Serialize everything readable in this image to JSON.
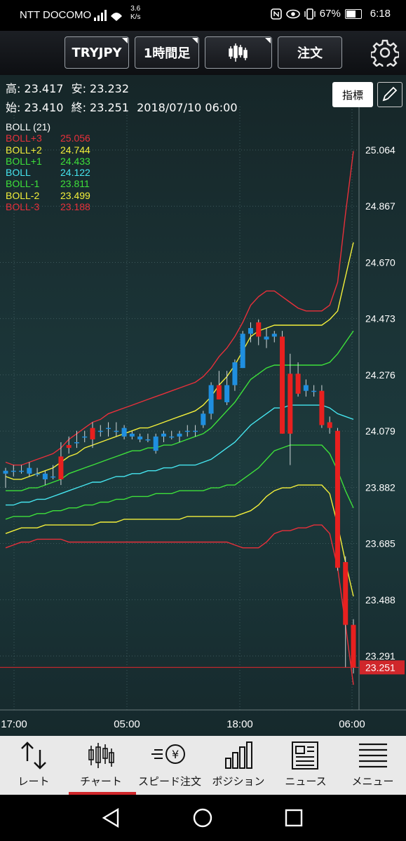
{
  "status_bar": {
    "carrier": "NTT DOCOMO",
    "speed_value": "3.6",
    "speed_unit": "K/s",
    "battery": "67%",
    "time": "6:18"
  },
  "toolbar": {
    "symbol": "TRYJPY",
    "timeframe": "1時間足",
    "chart_type_icon": "candlestick-icon",
    "order": "注文",
    "settings_icon": "gear-icon"
  },
  "ohlc": {
    "high": "高: 23.417",
    "low": "安: 23.232",
    "open": "始: 23.410",
    "close": "終: 23.251",
    "datetime": "2018/07/10 06:00"
  },
  "indicator_button": "指標",
  "legend": {
    "title": "BOLL (21)",
    "rows": [
      {
        "name": "BOLL+3",
        "value": "25.056",
        "color": "#e8303a"
      },
      {
        "name": "BOLL+2",
        "value": "24.744",
        "color": "#f4f03a"
      },
      {
        "name": "BOLL+1",
        "value": "24.433",
        "color": "#3ee03a"
      },
      {
        "name": "BOLL",
        "value": "24.122",
        "color": "#46e6f0"
      },
      {
        "name": "BOLL-1",
        "value": "23.811",
        "color": "#3ee03a"
      },
      {
        "name": "BOLL-2",
        "value": "23.499",
        "color": "#f4f03a"
      },
      {
        "name": "BOLL-3",
        "value": "23.188",
        "color": "#e8303a"
      }
    ]
  },
  "chart_data": {
    "type": "candlestick",
    "y_ticks": [
      "25.064",
      "24.867",
      "24.670",
      "24.473",
      "24.276",
      "24.079",
      "23.882",
      "23.685",
      "23.488",
      "23.291"
    ],
    "x_ticks": [
      "17:00",
      "05:00",
      "18:00",
      "06:00"
    ],
    "current_price": "23.251",
    "ylim": [
      23.18,
      25.14
    ],
    "candles": [
      {
        "o": 23.93,
        "h": 23.95,
        "l": 23.88,
        "c": 23.94
      },
      {
        "o": 23.94,
        "h": 23.96,
        "l": 23.92,
        "c": 23.94
      },
      {
        "o": 23.94,
        "h": 23.96,
        "l": 23.93,
        "c": 23.94
      },
      {
        "o": 23.93,
        "h": 23.97,
        "l": 23.92,
        "c": 23.95
      },
      {
        "o": 23.93,
        "h": 23.95,
        "l": 23.92,
        "c": 23.93
      },
      {
        "o": 23.91,
        "h": 23.94,
        "l": 23.89,
        "c": 23.93
      },
      {
        "o": 23.92,
        "h": 23.96,
        "l": 23.91,
        "c": 23.92
      },
      {
        "o": 23.99,
        "h": 24.04,
        "l": 23.89,
        "c": 23.91
      },
      {
        "o": 24.03,
        "h": 24.06,
        "l": 24.0,
        "c": 24.02
      },
      {
        "o": 24.04,
        "h": 24.08,
        "l": 24.02,
        "c": 24.04
      },
      {
        "o": 24.06,
        "h": 24.08,
        "l": 24.04,
        "c": 24.06
      },
      {
        "o": 24.09,
        "h": 24.11,
        "l": 24.02,
        "c": 24.05
      },
      {
        "o": 24.08,
        "h": 24.1,
        "l": 24.06,
        "c": 24.08
      },
      {
        "o": 24.09,
        "h": 24.11,
        "l": 24.06,
        "c": 24.09
      },
      {
        "o": 24.08,
        "h": 24.11,
        "l": 24.06,
        "c": 24.08
      },
      {
        "o": 24.06,
        "h": 24.1,
        "l": 24.05,
        "c": 24.09
      },
      {
        "o": 24.06,
        "h": 24.08,
        "l": 24.05,
        "c": 24.07
      },
      {
        "o": 24.05,
        "h": 24.07,
        "l": 24.04,
        "c": 24.06
      },
      {
        "o": 24.05,
        "h": 24.07,
        "l": 24.04,
        "c": 24.05
      },
      {
        "o": 24.01,
        "h": 24.07,
        "l": 24.0,
        "c": 24.06
      },
      {
        "o": 24.06,
        "h": 24.08,
        "l": 24.04,
        "c": 24.07
      },
      {
        "o": 24.06,
        "h": 24.08,
        "l": 24.05,
        "c": 24.06
      },
      {
        "o": 24.06,
        "h": 24.08,
        "l": 24.04,
        "c": 24.07
      },
      {
        "o": 24.08,
        "h": 24.1,
        "l": 24.06,
        "c": 24.08
      },
      {
        "o": 24.08,
        "h": 24.1,
        "l": 24.06,
        "c": 24.08
      },
      {
        "o": 24.1,
        "h": 24.15,
        "l": 24.09,
        "c": 24.14
      },
      {
        "o": 24.14,
        "h": 24.25,
        "l": 24.12,
        "c": 24.24
      },
      {
        "o": 24.24,
        "h": 24.29,
        "l": 24.19,
        "c": 24.19
      },
      {
        "o": 24.18,
        "h": 24.29,
        "l": 24.17,
        "c": 24.24
      },
      {
        "o": 24.24,
        "h": 24.33,
        "l": 24.22,
        "c": 24.32
      },
      {
        "o": 24.3,
        "h": 24.43,
        "l": 24.3,
        "c": 24.42
      },
      {
        "o": 24.42,
        "h": 24.46,
        "l": 24.39,
        "c": 24.44
      },
      {
        "o": 24.46,
        "h": 24.47,
        "l": 24.38,
        "c": 24.41
      },
      {
        "o": 24.4,
        "h": 24.44,
        "l": 24.37,
        "c": 24.41
      },
      {
        "o": 24.41,
        "h": 24.43,
        "l": 24.39,
        "c": 24.42
      },
      {
        "o": 24.41,
        "h": 24.43,
        "l": 24.07,
        "c": 24.07
      },
      {
        "o": 24.28,
        "h": 24.35,
        "l": 23.96,
        "c": 24.07
      },
      {
        "o": 24.28,
        "h": 24.32,
        "l": 24.2,
        "c": 24.21
      },
      {
        "o": 24.22,
        "h": 24.26,
        "l": 24.2,
        "c": 24.24
      },
      {
        "o": 24.22,
        "h": 24.24,
        "l": 24.2,
        "c": 24.22
      },
      {
        "o": 24.22,
        "h": 24.24,
        "l": 24.09,
        "c": 24.1
      },
      {
        "o": 24.11,
        "h": 24.13,
        "l": 24.07,
        "c": 24.09
      },
      {
        "o": 24.08,
        "h": 24.09,
        "l": 23.59,
        "c": 23.6
      },
      {
        "o": 23.62,
        "h": 23.64,
        "l": 23.25,
        "c": 23.4
      },
      {
        "o": 23.4,
        "h": 23.42,
        "l": 23.23,
        "c": 23.25
      }
    ]
  },
  "bottom_nav": [
    {
      "label": "レート",
      "icon": "rate-arrows-icon"
    },
    {
      "label": "チャート",
      "icon": "chart-candles-icon"
    },
    {
      "label": "スピード注文",
      "icon": "speed-order-icon"
    },
    {
      "label": "ポジション",
      "icon": "position-bars-icon"
    },
    {
      "label": "ニュース",
      "icon": "news-icon"
    },
    {
      "label": "メニュー",
      "icon": "menu-icon"
    }
  ]
}
